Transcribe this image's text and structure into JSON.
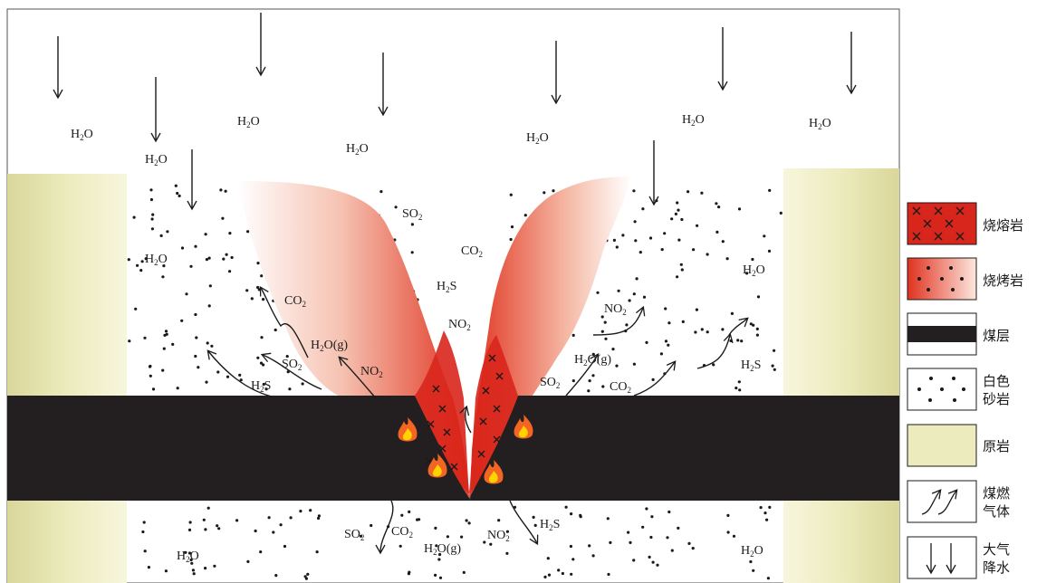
{
  "labels": {
    "atmosphere": [
      {
        "text": "H",
        "sub": "2",
        "tail": "O",
        "x": 78,
        "y": 152
      },
      {
        "text": "H",
        "sub": "2",
        "tail": "O",
        "x": 160,
        "y": 180
      },
      {
        "text": "H",
        "sub": "2",
        "tail": "O",
        "x": 262,
        "y": 138
      },
      {
        "text": "H",
        "sub": "2",
        "tail": "O",
        "x": 382,
        "y": 168
      },
      {
        "text": "H",
        "sub": "2",
        "tail": "O",
        "x": 581,
        "y": 156
      },
      {
        "text": "H",
        "sub": "2",
        "tail": "O",
        "x": 753,
        "y": 136
      },
      {
        "text": "H",
        "sub": "2",
        "tail": "O",
        "x": 893,
        "y": 140
      }
    ],
    "fire_zone": [
      {
        "text": "SO",
        "sub": "2",
        "tail": "",
        "x": 444,
        "y": 240
      },
      {
        "text": "CO",
        "sub": "2",
        "tail": "",
        "x": 509,
        "y": 281
      },
      {
        "text": "H",
        "sub": "2",
        "tail": "S",
        "x": 482,
        "y": 320
      },
      {
        "text": "NO",
        "sub": "2",
        "tail": "",
        "x": 495,
        "y": 362
      }
    ],
    "left_gases": [
      {
        "text": "H",
        "sub": "2",
        "tail": "O",
        "x": 160,
        "y": 290
      },
      {
        "text": "CO",
        "sub": "2",
        "tail": "",
        "x": 314,
        "y": 336
      },
      {
        "text": "H",
        "sub": "2",
        "tail": "O(g)",
        "x": 343,
        "y": 385
      },
      {
        "text": "SO",
        "sub": "2",
        "tail": "",
        "x": 311,
        "y": 406
      },
      {
        "text": "NO",
        "sub": "2",
        "tail": "",
        "x": 398,
        "y": 414
      },
      {
        "text": "H",
        "sub": "2",
        "tail": "S",
        "x": 277,
        "y": 430
      }
    ],
    "right_gases": [
      {
        "text": "H",
        "sub": "2",
        "tail": "O",
        "x": 820,
        "y": 302
      },
      {
        "text": "NO",
        "sub": "2",
        "tail": "",
        "x": 667,
        "y": 345
      },
      {
        "text": "H",
        "sub": "2",
        "tail": "O(g)",
        "x": 634,
        "y": 401
      },
      {
        "text": "SO",
        "sub": "2",
        "tail": "",
        "x": 596,
        "y": 426
      },
      {
        "text": "CO",
        "sub": "2",
        "tail": "",
        "x": 673,
        "y": 431
      },
      {
        "text": "H",
        "sub": "2",
        "tail": "S",
        "x": 818,
        "y": 407
      }
    ],
    "below_seam": [
      {
        "text": "SO",
        "sub": "2",
        "tail": "",
        "x": 380,
        "y": 594
      },
      {
        "text": "CO",
        "sub": "2",
        "tail": "",
        "x": 432,
        "y": 591
      },
      {
        "text": "H",
        "sub": "2",
        "tail": "O(g)",
        "x": 468,
        "y": 610
      },
      {
        "text": "NO",
        "sub": "2",
        "tail": "",
        "x": 538,
        "y": 595
      },
      {
        "text": "H",
        "sub": "2",
        "tail": "S",
        "x": 596,
        "y": 583
      },
      {
        "text": "H",
        "sub": "2",
        "tail": "O",
        "x": 195,
        "y": 618
      },
      {
        "text": "H",
        "sub": "2",
        "tail": "O",
        "x": 818,
        "y": 612
      }
    ]
  },
  "legend": {
    "items": [
      {
        "key": "melt-rock",
        "lines": [
          "烧熔岩"
        ]
      },
      {
        "key": "baked-rock",
        "lines": [
          "烧烤岩"
        ]
      },
      {
        "key": "coal-seam",
        "lines": [
          "煤层"
        ]
      },
      {
        "key": "white-sandstone",
        "lines": [
          "白色",
          "砂岩"
        ]
      },
      {
        "key": "original-rock",
        "lines": [
          "原岩"
        ]
      },
      {
        "key": "coal-fire-gas",
        "lines": [
          "煤燃",
          "气体"
        ]
      },
      {
        "key": "precipitation",
        "lines": [
          "大气",
          "降水"
        ]
      }
    ]
  },
  "colors": {
    "coal": "#231f20",
    "original_rock": "#ecebbd",
    "melt_red": "#d9261c",
    "baked_red": "#e23a25",
    "fire_orange": "#f26522",
    "fire_yellow": "#ffd200"
  }
}
